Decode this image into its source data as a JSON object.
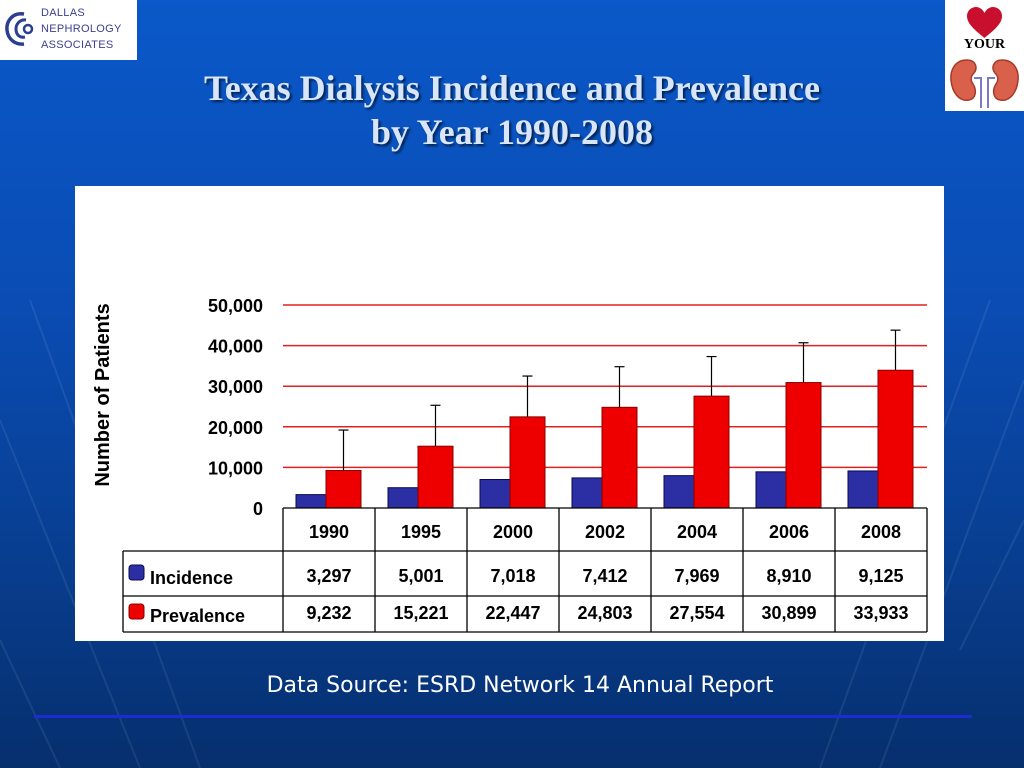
{
  "brand": {
    "org_line1": "DALLAS",
    "org_line2": "NEPHROLOGY",
    "org_line3": "ASSOCIATES",
    "campaign_text": "YOUR"
  },
  "slide": {
    "title_line1": "Texas Dialysis Incidence and Prevalence",
    "title_line2": "by Year 1990-2008",
    "source": "Data Source: ESRD Network 14 Annual Report"
  },
  "colors": {
    "incidence": "#2b2fa3",
    "prevalence": "#ee0000",
    "gridline": "#e02020",
    "title": "#d9e6fa",
    "background": "#0a4cb3"
  },
  "chart_data": {
    "type": "bar",
    "title": "",
    "xlabel": "",
    "ylabel": "Number of Patients",
    "ylim": [
      0,
      50000
    ],
    "yticks": [
      "0",
      "10,000",
      "20,000",
      "30,000",
      "40,000",
      "50,000"
    ],
    "grid": true,
    "error_bars": "prevalence",
    "categories": [
      "1990",
      "1995",
      "2000",
      "2002",
      "2004",
      "2006",
      "2008"
    ],
    "series": [
      {
        "name": "Incidence",
        "values": [
          3297,
          5001,
          7018,
          7412,
          7969,
          8910,
          9125
        ],
        "labels": [
          "3,297",
          "5,001",
          "7,018",
          "7,412",
          "7,969",
          "8,910",
          "9,125"
        ]
      },
      {
        "name": "Prevalence",
        "values": [
          9232,
          15221,
          22447,
          24803,
          27554,
          30899,
          33933
        ],
        "labels": [
          "9,232",
          "15,221",
          "22,447",
          "24,803",
          "27,554",
          "30,899",
          "33,933"
        ],
        "error_upper": [
          19200,
          25300,
          32500,
          34800,
          37300,
          40700,
          43800
        ]
      }
    ]
  }
}
